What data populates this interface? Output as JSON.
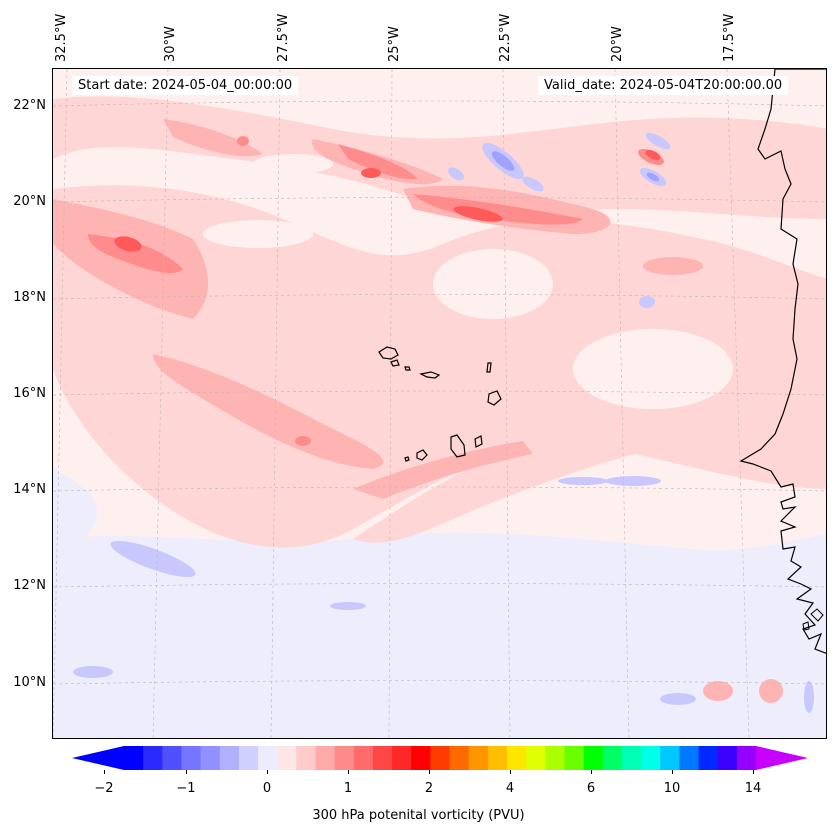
{
  "map": {
    "start_label": "Start date: 2024-05-04_00:00:00",
    "valid_label": "Valid_date: 2024-05-04T20:00:00.00",
    "lon_labels": [
      "32.5°W",
      "30°W",
      "27.5°W",
      "25°W",
      "22.5°W",
      "20°W",
      "17.5°W"
    ],
    "lat_labels": [
      "22°N",
      "20°N",
      "18°N",
      "16°N",
      "14°N",
      "12°N",
      "10°N"
    ],
    "colors": {
      "background": "#fff0f0",
      "light_pink": "#ffd6d6",
      "pink": "#ffb4b4",
      "salmon": "#ff8c8c",
      "red": "#ff5a5a",
      "pale_blue": "#ededfc",
      "light_blue": "#c8c8ff",
      "blue": "#a0a0ff",
      "coast": "#000000"
    }
  },
  "colorbar": {
    "label": "300 hPa potenital vorticity (PVU)",
    "ticks": [
      "−2",
      "−1",
      "0",
      "1",
      "2",
      "4",
      "6",
      "10",
      "14"
    ],
    "colors": [
      "#0000ff",
      "#2a2aff",
      "#5050ff",
      "#7575ff",
      "#9090ff",
      "#b0b0ff",
      "#d0d0ff",
      "#ececff",
      "#ffe6e6",
      "#ffcaca",
      "#ffaaaa",
      "#ff8a8a",
      "#ff6a6a",
      "#ff4646",
      "#ff2828",
      "#ff0000",
      "#ff3c00",
      "#ff6a00",
      "#ff9600",
      "#ffbe00",
      "#ffe600",
      "#e0ff00",
      "#aaff00",
      "#6aff00",
      "#00ff00",
      "#00ff64",
      "#00ffb4",
      "#00ffe6",
      "#00c8ff",
      "#0078ff",
      "#0028ff",
      "#3c00ff",
      "#9600ff"
    ],
    "under_color": "#0000ff",
    "over_color": "#c800ff"
  }
}
